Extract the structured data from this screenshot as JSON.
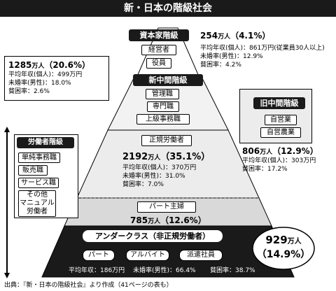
{
  "title": "新・日本の階級社会",
  "capitalist": {
    "label": "資本家階級",
    "roles": [
      "経営者",
      "役員"
    ],
    "population": "254",
    "unit": "万人",
    "pct": "（4.1%）",
    "stats": [
      "平均年収(個人)：861万円(従業員30人以上)",
      "未婚率(男性)：12.9%",
      "貧困率：4.2%"
    ]
  },
  "new_middle": {
    "label": "新中間階級",
    "roles": [
      "管理職",
      "専門職",
      "上級事務職"
    ],
    "population": "1285",
    "unit": "万人",
    "pct": "（20.6%）",
    "stats": [
      "平均年収(個人)：499万円",
      "未婚率(男性)：18.0%",
      "貧困率：2.6%"
    ]
  },
  "old_middle": {
    "label": "旧中間階級",
    "roles": [
      "自営業",
      "自営農業"
    ],
    "population": "806",
    "unit": "万人",
    "pct": "（12.9%）",
    "stats": [
      "平均年収(個人)：303万円",
      "貧困率：17.2%"
    ]
  },
  "working": {
    "label": "労働者階級",
    "roles": [
      "単純事務職",
      "販売職",
      "サービス職",
      "その他\nマニュアル\n労働者"
    ]
  },
  "regular": {
    "label": "正規労働者",
    "population": "2192",
    "unit": "万人",
    "pct": "（35.1%）",
    "stats": [
      "平均年収(個人)：370万円",
      "未婚率(男性)：31.0%",
      "貧困率：7.0%"
    ]
  },
  "part_housewife": {
    "label": "パート主婦",
    "population": "785",
    "unit": "万人",
    "pct": "（12.6%）"
  },
  "underclass": {
    "label": "アンダークラス（非正規労働者）",
    "roles": [
      "パート",
      "アルバイト",
      "派遣社員"
    ],
    "stats": [
      "平均年収：186万円",
      "未婚率(男性)：66.4%",
      "貧困率：38.7%"
    ],
    "population": "929",
    "unit": "万人",
    "pct": "（14.9%）"
  },
  "source": "出典：『新・日本の階級社会』より作成（41ページの表も）",
  "colors": {
    "dark": "#1a1a1a",
    "light_gray": "#eeeeee",
    "mid_gray": "#d9d9d9",
    "white": "#ffffff"
  }
}
